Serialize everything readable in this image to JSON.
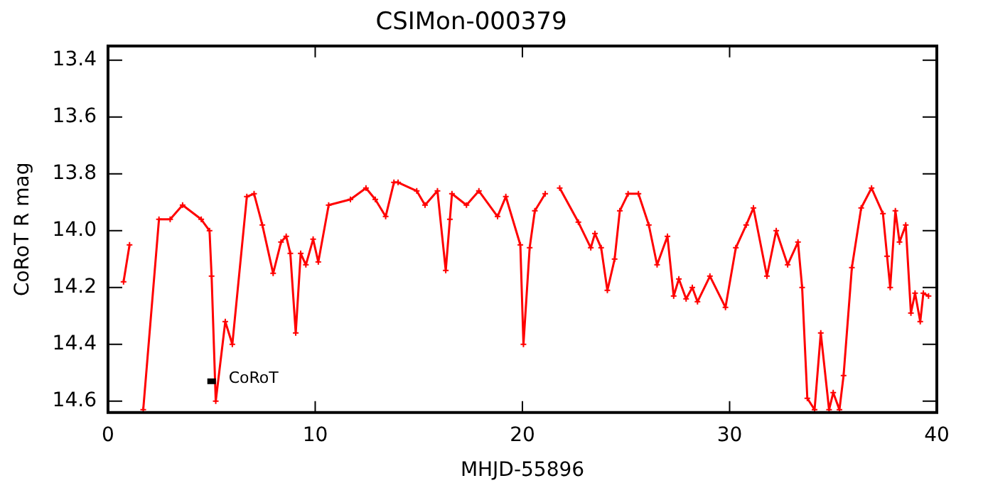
{
  "chart_data": {
    "type": "line",
    "title": "CSIMon-000379",
    "xlabel": "MHJD-55896",
    "ylabel": "CoRoT R mag",
    "x": [
      0.75,
      1.04,
      1.3,
      1.7,
      2.46,
      3.0,
      3.6,
      4.5,
      4.9,
      5.0,
      5.2,
      5.66,
      6.0,
      6.7,
      7.05,
      7.45,
      7.97,
      8.35,
      8.6,
      8.8,
      9.06,
      9.3,
      9.55,
      9.9,
      10.15,
      10.65,
      11.7,
      12.45,
      12.9,
      13.4,
      13.8,
      14.0,
      14.9,
      15.3,
      15.9,
      16.3,
      16.5,
      16.6,
      17.3,
      17.9,
      18.8,
      19.2,
      19.9,
      20.05,
      20.35,
      20.6,
      21.1,
      21.4,
      21.8,
      22.7,
      23.3,
      23.5,
      23.8,
      24.1,
      24.45,
      24.7,
      25.1,
      25.6,
      26.1,
      26.5,
      27.0,
      27.3,
      27.55,
      27.9,
      28.2,
      28.45,
      29.05,
      29.8,
      30.3,
      30.8,
      31.15,
      31.8,
      32.25,
      32.8,
      33.3,
      33.5,
      33.75,
      34.1,
      34.4,
      34.8,
      35.0,
      35.3,
      35.5,
      35.9,
      36.35,
      36.85,
      37.4,
      37.6,
      37.75,
      38.0,
      38.2,
      38.5,
      38.75,
      38.95,
      39.2,
      39.35,
      39.6
    ],
    "series": [
      {
        "color": "#ff0000",
        "values": [
          14.18,
          14.05,
          null,
          14.63,
          13.96,
          13.96,
          13.91,
          13.96,
          14.0,
          14.16,
          14.6,
          14.32,
          14.4,
          13.88,
          13.87,
          13.98,
          14.15,
          14.04,
          14.02,
          14.08,
          14.36,
          14.08,
          14.12,
          14.03,
          14.11,
          13.91,
          13.89,
          13.85,
          13.89,
          13.95,
          13.83,
          13.83,
          13.86,
          13.91,
          13.86,
          14.14,
          13.96,
          13.87,
          13.91,
          13.86,
          13.95,
          13.88,
          14.05,
          14.4,
          14.06,
          13.93,
          13.87,
          null,
          13.85,
          13.97,
          14.06,
          14.01,
          14.06,
          14.21,
          14.1,
          13.93,
          13.87,
          13.87,
          13.98,
          14.12,
          14.02,
          14.23,
          14.17,
          14.24,
          14.2,
          14.25,
          14.16,
          14.27,
          14.06,
          13.98,
          13.92,
          14.16,
          14.0,
          14.12,
          14.04,
          14.2,
          14.59,
          14.63,
          14.36,
          14.63,
          14.57,
          14.63,
          14.51,
          14.13,
          13.92,
          13.85,
          13.94,
          14.09,
          14.2,
          13.93,
          14.04,
          13.98,
          14.29,
          14.22,
          14.32,
          14.22,
          14.23
        ]
      }
    ],
    "xlim": [
      0,
      40
    ],
    "xticks": [
      0,
      10,
      20,
      30,
      40
    ],
    "ylim": [
      14.64,
      13.35
    ],
    "yticks": [
      {
        "value": 13.4,
        "label": "13.4"
      },
      {
        "value": 13.6,
        "label": "13.6"
      },
      {
        "value": 13.8,
        "label": "13.8"
      },
      {
        "value": 14.0,
        "label": "14.0"
      },
      {
        "value": 14.2,
        "label": "14.2"
      },
      {
        "value": 14.4,
        "label": "14.4"
      },
      {
        "value": 14.6,
        "label": "14.6"
      }
    ],
    "marker": "cross",
    "line_style": "solid",
    "grid": false,
    "legend": false,
    "annotations": [
      {
        "text": "CoRoT",
        "x": 5.0,
        "y": 14.53
      }
    ]
  }
}
